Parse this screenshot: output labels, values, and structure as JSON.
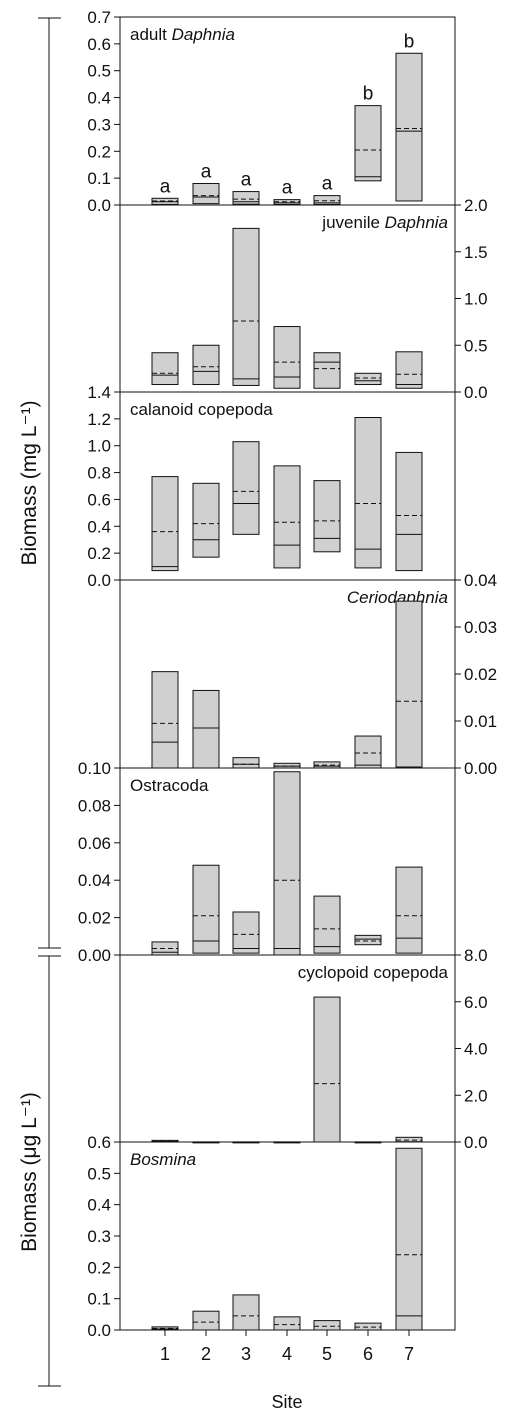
{
  "figure": {
    "xlabel": "Site",
    "ylabel_mg": "Biomass (mg L⁻¹)",
    "ylabel_ug": "Biomass (μg L⁻¹)"
  },
  "chart_data": [
    {
      "type": "floating-bar",
      "title": "adult Daphnia",
      "title_parts": [
        {
          "text": "adult ",
          "italic": false
        },
        {
          "text": "Daphnia",
          "italic": true
        }
      ],
      "unit": "mg L-1",
      "axis_side": "left",
      "ylim": [
        0,
        0.7
      ],
      "yticks": [
        "0.0",
        "0.1",
        "0.2",
        "0.3",
        "0.4",
        "0.5",
        "0.6",
        "0.7"
      ],
      "categories": [
        "1",
        "2",
        "3",
        "4",
        "5",
        "6",
        "7"
      ],
      "bars": [
        {
          "min": 0.002,
          "max": 0.025,
          "median": 0.012,
          "mean": 0.015
        },
        {
          "min": 0.005,
          "max": 0.08,
          "median": 0.03,
          "mean": 0.035
        },
        {
          "min": 0.003,
          "max": 0.05,
          "median": 0.012,
          "mean": 0.022
        },
        {
          "min": 0.002,
          "max": 0.02,
          "median": 0.008,
          "mean": 0.012
        },
        {
          "min": 0.002,
          "max": 0.035,
          "median": 0.008,
          "mean": 0.016
        },
        {
          "min": 0.09,
          "max": 0.37,
          "median": 0.105,
          "mean": 0.205
        },
        {
          "min": 0.015,
          "max": 0.565,
          "median": 0.275,
          "mean": 0.285
        }
      ],
      "letters": [
        "a",
        "a",
        "a",
        "a",
        "a",
        "b",
        "b"
      ]
    },
    {
      "type": "floating-bar",
      "title": "juvenile Daphnia",
      "title_parts": [
        {
          "text": "juvenile ",
          "italic": false
        },
        {
          "text": "Daphnia",
          "italic": true
        }
      ],
      "unit": "mg L-1",
      "axis_side": "right",
      "ylim": [
        0,
        2.0
      ],
      "yticks": [
        "0.0",
        "0.5",
        "1.0",
        "1.5",
        "2.0"
      ],
      "categories": [
        "1",
        "2",
        "3",
        "4",
        "5",
        "6",
        "7"
      ],
      "bars": [
        {
          "min": 0.08,
          "max": 0.42,
          "median": 0.18,
          "mean": 0.2
        },
        {
          "min": 0.08,
          "max": 0.5,
          "median": 0.22,
          "mean": 0.27
        },
        {
          "min": 0.07,
          "max": 1.75,
          "median": 0.14,
          "mean": 0.76
        },
        {
          "min": 0.04,
          "max": 0.7,
          "median": 0.16,
          "mean": 0.32
        },
        {
          "min": 0.04,
          "max": 0.42,
          "median": 0.32,
          "mean": 0.25
        },
        {
          "min": 0.08,
          "max": 0.2,
          "median": 0.12,
          "mean": 0.15
        },
        {
          "min": 0.04,
          "max": 0.43,
          "median": 0.08,
          "mean": 0.19
        }
      ]
    },
    {
      "type": "floating-bar",
      "title": "calanoid copepoda",
      "title_parts": [
        {
          "text": "calanoid copepoda",
          "italic": false
        }
      ],
      "unit": "mg L-1",
      "axis_side": "left",
      "ylim": [
        0,
        1.4
      ],
      "yticks": [
        "0.0",
        "0.2",
        "0.4",
        "0.6",
        "0.8",
        "1.0",
        "1.2",
        "1.4"
      ],
      "categories": [
        "1",
        "2",
        "3",
        "4",
        "5",
        "6",
        "7"
      ],
      "bars": [
        {
          "min": 0.07,
          "max": 0.77,
          "median": 0.1,
          "mean": 0.36
        },
        {
          "min": 0.17,
          "max": 0.72,
          "median": 0.3,
          "mean": 0.42
        },
        {
          "min": 0.34,
          "max": 1.03,
          "median": 0.57,
          "mean": 0.66
        },
        {
          "min": 0.09,
          "max": 0.85,
          "median": 0.26,
          "mean": 0.43
        },
        {
          "min": 0.21,
          "max": 0.74,
          "median": 0.31,
          "mean": 0.44
        },
        {
          "min": 0.09,
          "max": 1.21,
          "median": 0.23,
          "mean": 0.57
        },
        {
          "min": 0.07,
          "max": 0.95,
          "median": 0.34,
          "mean": 0.48
        }
      ]
    },
    {
      "type": "floating-bar",
      "title": "Ceriodaphnia",
      "title_parts": [
        {
          "text": "Ceriodaphnia",
          "italic": true
        }
      ],
      "unit": "mg L-1",
      "axis_side": "right",
      "ylim": [
        0,
        0.04
      ],
      "yticks": [
        "0.00",
        "0.01",
        "0.02",
        "0.03",
        "0.04"
      ],
      "categories": [
        "1",
        "2",
        "3",
        "4",
        "5",
        "6",
        "7"
      ],
      "bars": [
        {
          "min": 0.0,
          "max": 0.0205,
          "median": 0.0055,
          "mean": 0.0095
        },
        {
          "min": 0.0,
          "max": 0.0165,
          "median": 0.0085,
          "mean": 0.0085
        },
        {
          "min": 0.0,
          "max": 0.0022,
          "median": 0.0008,
          "mean": 0.0008
        },
        {
          "min": 0.0,
          "max": 0.001,
          "median": 0.0004,
          "mean": 0.0004
        },
        {
          "min": 0.0,
          "max": 0.0013,
          "median": 0.0004,
          "mean": 0.0006
        },
        {
          "min": 0.0,
          "max": 0.0068,
          "median": 0.0006,
          "mean": 0.0032
        },
        {
          "min": 0.0,
          "max": 0.0355,
          "median": 0.0002,
          "mean": 0.0142
        }
      ]
    },
    {
      "type": "floating-bar",
      "title": "Ostracoda",
      "title_parts": [
        {
          "text": "Ostracoda",
          "italic": false
        }
      ],
      "unit": "mg L-1",
      "axis_side": "left",
      "ylim": [
        0,
        0.1
      ],
      "yticks": [
        "0.00",
        "0.02",
        "0.04",
        "0.06",
        "0.08",
        "0.10"
      ],
      "categories": [
        "1",
        "2",
        "3",
        "4",
        "5",
        "6",
        "7"
      ],
      "bars": [
        {
          "min": 0.0,
          "max": 0.007,
          "median": 0.0015,
          "mean": 0.0035
        },
        {
          "min": 0.001,
          "max": 0.048,
          "median": 0.0075,
          "mean": 0.021
        },
        {
          "min": 0.001,
          "max": 0.023,
          "median": 0.0035,
          "mean": 0.011
        },
        {
          "min": 0.0,
          "max": 0.098,
          "median": 0.0035,
          "mean": 0.04
        },
        {
          "min": 0.001,
          "max": 0.0315,
          "median": 0.0045,
          "mean": 0.014
        },
        {
          "min": 0.0055,
          "max": 0.0105,
          "median": 0.0085,
          "mean": 0.0075
        },
        {
          "min": 0.001,
          "max": 0.047,
          "median": 0.009,
          "mean": 0.021
        }
      ]
    },
    {
      "type": "floating-bar",
      "title": "cyclopoid copepoda",
      "title_parts": [
        {
          "text": "cyclopoid copepoda",
          "italic": false
        }
      ],
      "unit": "μg L-1",
      "axis_side": "right",
      "ylim": [
        0,
        8.0
      ],
      "yticks": [
        "0.0",
        "2.0",
        "4.0",
        "6.0",
        "8.0"
      ],
      "categories": [
        "1",
        "2",
        "3",
        "4",
        "5",
        "6",
        "7"
      ],
      "bars": [
        {
          "min": 0.0,
          "max": 0.07,
          "median": 0.02,
          "mean": 0.04
        },
        {
          "min": 0.0,
          "max": 0.005,
          "median": 0.0,
          "mean": 0.0
        },
        {
          "min": 0.0,
          "max": 0.005,
          "median": 0.0,
          "mean": 0.0
        },
        {
          "min": 0.0,
          "max": 0.005,
          "median": 0.0,
          "mean": 0.0
        },
        {
          "min": 0.0,
          "max": 6.2,
          "median": 0.0,
          "mean": 2.5
        },
        {
          "min": 0.0,
          "max": 0.005,
          "median": 0.0,
          "mean": 0.0
        },
        {
          "min": 0.0,
          "max": 0.2,
          "median": 0.01,
          "mean": 0.08
        }
      ]
    },
    {
      "type": "floating-bar",
      "title": "Bosmina",
      "title_parts": [
        {
          "text": "Bosmina",
          "italic": true
        }
      ],
      "unit": "μg L-1",
      "axis_side": "left",
      "ylim": [
        0,
        0.6
      ],
      "yticks": [
        "0.0",
        "0.1",
        "0.2",
        "0.3",
        "0.4",
        "0.5",
        "0.6"
      ],
      "categories": [
        "1",
        "2",
        "3",
        "4",
        "5",
        "6",
        "7"
      ],
      "bars": [
        {
          "min": 0.0,
          "max": 0.01,
          "median": 0.003,
          "mean": 0.005
        },
        {
          "min": 0.0,
          "max": 0.06,
          "median": 0.0,
          "mean": 0.025
        },
        {
          "min": 0.0,
          "max": 0.112,
          "median": 0.0,
          "mean": 0.045
        },
        {
          "min": 0.0,
          "max": 0.042,
          "median": 0.0,
          "mean": 0.017
        },
        {
          "min": 0.0,
          "max": 0.03,
          "median": 0.0,
          "mean": 0.012
        },
        {
          "min": 0.0,
          "max": 0.022,
          "median": 0.0,
          "mean": 0.009
        },
        {
          "min": 0.0,
          "max": 0.58,
          "median": 0.045,
          "mean": 0.24
        }
      ]
    }
  ]
}
